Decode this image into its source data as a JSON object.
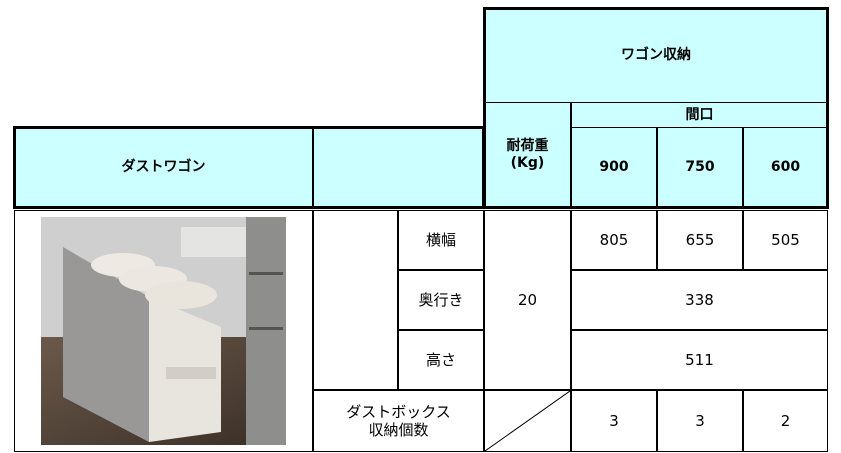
{
  "header": {
    "title": "ワゴン収納",
    "width_label": "間口",
    "product": "ダストワゴン",
    "load_label": "耐荷重\n(Kg)",
    "widths": [
      900,
      750,
      600
    ]
  },
  "rows": [
    {
      "label": "横幅",
      "values": [
        805,
        655,
        505
      ]
    },
    {
      "label": "奥行き",
      "values": [
        338
      ]
    },
    {
      "label": "高さ",
      "values": [
        511
      ]
    }
  ],
  "load": 20,
  "boxes": {
    "label": "ダストボックス\n収納個数",
    "values": [
      3,
      3,
      2
    ]
  }
}
